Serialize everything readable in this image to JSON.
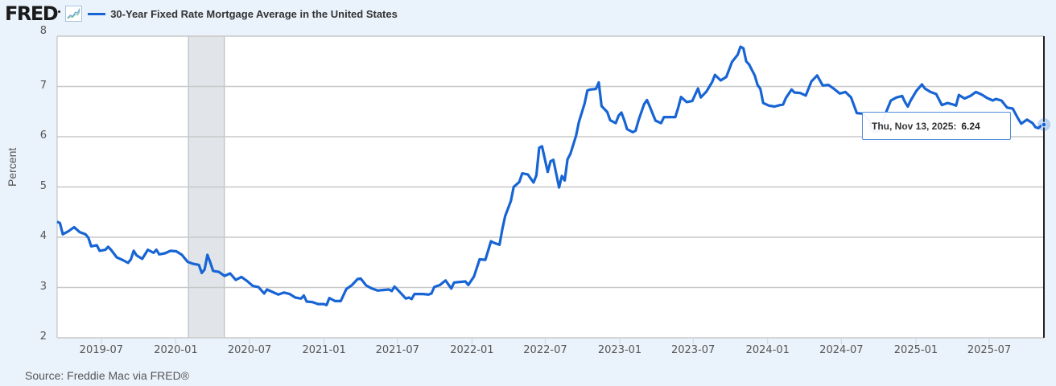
{
  "header": {
    "logo": "FRED",
    "icon": "line-chart-icon",
    "series_title": "30-Year Fixed Rate Mortgage Average in the United States"
  },
  "axis": {
    "ylabel": "Percent",
    "yticks": [
      "8",
      "7",
      "6",
      "5",
      "4",
      "3",
      "2"
    ],
    "xticks": [
      "2019-07",
      "2020-01",
      "2020-07",
      "2021-01",
      "2021-07",
      "2022-01",
      "2022-07",
      "2023-01",
      "2023-07",
      "2024-01",
      "2024-07",
      "2025-01",
      "2025-07"
    ]
  },
  "tooltip": {
    "date": "Thu, Nov 13, 2025:",
    "value": "6.24"
  },
  "source": "Source: Freddie Mac via FRED®",
  "colors": {
    "line": "#1764d4",
    "recession": "#e1e5ea",
    "grid": "#c8c8c8",
    "background": "#eaf2fb"
  },
  "chart_data": {
    "type": "line",
    "title": "30-Year Fixed Rate Mortgage Average in the United States",
    "xlabel": "",
    "ylabel": "Percent",
    "ylim": [
      2,
      8
    ],
    "xlim": [
      "2019-03-14",
      "2025-11-13"
    ],
    "grid": true,
    "legend_position": "top",
    "recession_shading": [
      [
        "2020-02-01",
        "2020-04-30"
      ]
    ],
    "series": [
      {
        "name": "30-Year Fixed Rate Mortgage Average in the United States",
        "points": [
          [
            "2019-03-14",
            4.31
          ],
          [
            "2019-03-21",
            4.28
          ],
          [
            "2019-03-28",
            4.06
          ],
          [
            "2019-04-11",
            4.12
          ],
          [
            "2019-04-25",
            4.2
          ],
          [
            "2019-05-09",
            4.1
          ],
          [
            "2019-05-23",
            4.06
          ],
          [
            "2019-05-30",
            3.99
          ],
          [
            "2019-06-06",
            3.82
          ],
          [
            "2019-06-20",
            3.84
          ],
          [
            "2019-06-27",
            3.73
          ],
          [
            "2019-07-11",
            3.75
          ],
          [
            "2019-07-18",
            3.81
          ],
          [
            "2019-07-25",
            3.75
          ],
          [
            "2019-08-08",
            3.6
          ],
          [
            "2019-08-22",
            3.55
          ],
          [
            "2019-09-05",
            3.49
          ],
          [
            "2019-09-12",
            3.56
          ],
          [
            "2019-09-19",
            3.73
          ],
          [
            "2019-09-26",
            3.64
          ],
          [
            "2019-10-10",
            3.57
          ],
          [
            "2019-10-24",
            3.75
          ],
          [
            "2019-11-07",
            3.69
          ],
          [
            "2019-11-14",
            3.75
          ],
          [
            "2019-11-21",
            3.66
          ],
          [
            "2019-12-05",
            3.68
          ],
          [
            "2019-12-19",
            3.73
          ],
          [
            "2020-01-02",
            3.72
          ],
          [
            "2020-01-16",
            3.65
          ],
          [
            "2020-01-30",
            3.51
          ],
          [
            "2020-02-13",
            3.47
          ],
          [
            "2020-02-27",
            3.45
          ],
          [
            "2020-03-05",
            3.29
          ],
          [
            "2020-03-12",
            3.36
          ],
          [
            "2020-03-19",
            3.65
          ],
          [
            "2020-03-26",
            3.5
          ],
          [
            "2020-04-02",
            3.33
          ],
          [
            "2020-04-16",
            3.31
          ],
          [
            "2020-04-30",
            3.23
          ],
          [
            "2020-05-14",
            3.28
          ],
          [
            "2020-05-28",
            3.15
          ],
          [
            "2020-06-11",
            3.21
          ],
          [
            "2020-06-25",
            3.13
          ],
          [
            "2020-07-09",
            3.03
          ],
          [
            "2020-07-23",
            3.01
          ],
          [
            "2020-08-06",
            2.88
          ],
          [
            "2020-08-13",
            2.96
          ],
          [
            "2020-08-27",
            2.91
          ],
          [
            "2020-09-10",
            2.86
          ],
          [
            "2020-09-24",
            2.9
          ],
          [
            "2020-10-08",
            2.87
          ],
          [
            "2020-10-22",
            2.8
          ],
          [
            "2020-11-05",
            2.78
          ],
          [
            "2020-11-12",
            2.84
          ],
          [
            "2020-11-19",
            2.72
          ],
          [
            "2020-12-03",
            2.71
          ],
          [
            "2020-12-17",
            2.67
          ],
          [
            "2020-12-31",
            2.67
          ],
          [
            "2021-01-07",
            2.65
          ],
          [
            "2021-01-14",
            2.79
          ],
          [
            "2021-01-28",
            2.73
          ],
          [
            "2021-02-11",
            2.73
          ],
          [
            "2021-02-25",
            2.97
          ],
          [
            "2021-03-11",
            3.05
          ],
          [
            "2021-03-25",
            3.17
          ],
          [
            "2021-04-01",
            3.18
          ],
          [
            "2021-04-15",
            3.04
          ],
          [
            "2021-04-29",
            2.98
          ],
          [
            "2021-05-13",
            2.94
          ],
          [
            "2021-05-27",
            2.95
          ],
          [
            "2021-06-10",
            2.96
          ],
          [
            "2021-06-17",
            2.93
          ],
          [
            "2021-06-24",
            3.02
          ],
          [
            "2021-07-08",
            2.9
          ],
          [
            "2021-07-22",
            2.78
          ],
          [
            "2021-07-29",
            2.8
          ],
          [
            "2021-08-05",
            2.77
          ],
          [
            "2021-08-12",
            2.87
          ],
          [
            "2021-09-02",
            2.87
          ],
          [
            "2021-09-16",
            2.86
          ],
          [
            "2021-09-23",
            2.88
          ],
          [
            "2021-09-30",
            3.01
          ],
          [
            "2021-10-14",
            3.05
          ],
          [
            "2021-10-28",
            3.14
          ],
          [
            "2021-11-11",
            2.98
          ],
          [
            "2021-11-18",
            3.1
          ],
          [
            "2021-12-02",
            3.11
          ],
          [
            "2021-12-16",
            3.12
          ],
          [
            "2021-12-23",
            3.05
          ],
          [
            "2022-01-06",
            3.22
          ],
          [
            "2022-01-20",
            3.56
          ],
          [
            "2022-02-03",
            3.55
          ],
          [
            "2022-02-17",
            3.92
          ],
          [
            "2022-02-24",
            3.89
          ],
          [
            "2022-03-10",
            3.85
          ],
          [
            "2022-03-17",
            4.16
          ],
          [
            "2022-03-24",
            4.42
          ],
          [
            "2022-04-07",
            4.72
          ],
          [
            "2022-04-14",
            5.0
          ],
          [
            "2022-04-28",
            5.1
          ],
          [
            "2022-05-05",
            5.27
          ],
          [
            "2022-05-19",
            5.25
          ],
          [
            "2022-06-02",
            5.09
          ],
          [
            "2022-06-09",
            5.23
          ],
          [
            "2022-06-16",
            5.78
          ],
          [
            "2022-06-23",
            5.81
          ],
          [
            "2022-07-07",
            5.3
          ],
          [
            "2022-07-14",
            5.51
          ],
          [
            "2022-07-21",
            5.54
          ],
          [
            "2022-08-04",
            4.99
          ],
          [
            "2022-08-11",
            5.22
          ],
          [
            "2022-08-18",
            5.13
          ],
          [
            "2022-08-25",
            5.55
          ],
          [
            "2022-09-01",
            5.66
          ],
          [
            "2022-09-15",
            6.02
          ],
          [
            "2022-09-22",
            6.29
          ],
          [
            "2022-10-06",
            6.66
          ],
          [
            "2022-10-13",
            6.92
          ],
          [
            "2022-10-20",
            6.94
          ],
          [
            "2022-11-03",
            6.95
          ],
          [
            "2022-11-10",
            7.08
          ],
          [
            "2022-11-17",
            6.61
          ],
          [
            "2022-12-01",
            6.49
          ],
          [
            "2022-12-08",
            6.33
          ],
          [
            "2022-12-22",
            6.27
          ],
          [
            "2022-12-29",
            6.42
          ],
          [
            "2023-01-05",
            6.48
          ],
          [
            "2023-01-12",
            6.33
          ],
          [
            "2023-01-19",
            6.15
          ],
          [
            "2023-02-02",
            6.09
          ],
          [
            "2023-02-09",
            6.12
          ],
          [
            "2023-02-16",
            6.32
          ],
          [
            "2023-03-02",
            6.65
          ],
          [
            "2023-03-09",
            6.73
          ],
          [
            "2023-03-16",
            6.6
          ],
          [
            "2023-03-30",
            6.32
          ],
          [
            "2023-04-13",
            6.27
          ],
          [
            "2023-04-20",
            6.39
          ],
          [
            "2023-05-04",
            6.39
          ],
          [
            "2023-05-18",
            6.39
          ],
          [
            "2023-05-25",
            6.57
          ],
          [
            "2023-06-01",
            6.79
          ],
          [
            "2023-06-15",
            6.69
          ],
          [
            "2023-06-29",
            6.71
          ],
          [
            "2023-07-13",
            6.96
          ],
          [
            "2023-07-20",
            6.78
          ],
          [
            "2023-08-03",
            6.9
          ],
          [
            "2023-08-17",
            7.09
          ],
          [
            "2023-08-24",
            7.23
          ],
          [
            "2023-09-07",
            7.12
          ],
          [
            "2023-09-21",
            7.19
          ],
          [
            "2023-10-05",
            7.49
          ],
          [
            "2023-10-19",
            7.63
          ],
          [
            "2023-10-26",
            7.79
          ],
          [
            "2023-11-02",
            7.76
          ],
          [
            "2023-11-09",
            7.5
          ],
          [
            "2023-11-16",
            7.44
          ],
          [
            "2023-11-30",
            7.22
          ],
          [
            "2023-12-07",
            7.03
          ],
          [
            "2023-12-14",
            6.95
          ],
          [
            "2023-12-21",
            6.67
          ],
          [
            "2024-01-04",
            6.62
          ],
          [
            "2024-01-18",
            6.6
          ],
          [
            "2024-02-01",
            6.63
          ],
          [
            "2024-02-08",
            6.64
          ],
          [
            "2024-02-15",
            6.77
          ],
          [
            "2024-02-29",
            6.94
          ],
          [
            "2024-03-07",
            6.88
          ],
          [
            "2024-03-21",
            6.87
          ],
          [
            "2024-04-04",
            6.82
          ],
          [
            "2024-04-18",
            7.1
          ],
          [
            "2024-05-02",
            7.22
          ],
          [
            "2024-05-16",
            7.02
          ],
          [
            "2024-05-30",
            7.03
          ],
          [
            "2024-06-13",
            6.95
          ],
          [
            "2024-06-27",
            6.86
          ],
          [
            "2024-07-11",
            6.89
          ],
          [
            "2024-07-25",
            6.78
          ],
          [
            "2024-08-08",
            6.47
          ],
          [
            "2024-08-22",
            6.46
          ],
          [
            "2024-09-05",
            6.35
          ],
          [
            "2024-09-19",
            6.09
          ],
          [
            "2024-10-03",
            6.12
          ],
          [
            "2024-10-17",
            6.44
          ],
          [
            "2024-10-31",
            6.72
          ],
          [
            "2024-11-14",
            6.78
          ],
          [
            "2024-11-28",
            6.81
          ],
          [
            "2024-12-05",
            6.69
          ],
          [
            "2024-12-12",
            6.6
          ],
          [
            "2024-12-19",
            6.72
          ],
          [
            "2025-01-02",
            6.91
          ],
          [
            "2025-01-16",
            7.04
          ],
          [
            "2025-01-23",
            6.96
          ],
          [
            "2025-02-06",
            6.89
          ],
          [
            "2025-02-20",
            6.85
          ],
          [
            "2025-03-06",
            6.63
          ],
          [
            "2025-03-20",
            6.67
          ],
          [
            "2025-04-03",
            6.64
          ],
          [
            "2025-04-10",
            6.62
          ],
          [
            "2025-04-17",
            6.83
          ],
          [
            "2025-05-01",
            6.76
          ],
          [
            "2025-05-15",
            6.81
          ],
          [
            "2025-05-29",
            6.89
          ],
          [
            "2025-06-12",
            6.84
          ],
          [
            "2025-06-26",
            6.77
          ],
          [
            "2025-07-10",
            6.72
          ],
          [
            "2025-07-17",
            6.75
          ],
          [
            "2025-07-31",
            6.72
          ],
          [
            "2025-08-14",
            6.58
          ],
          [
            "2025-08-28",
            6.56
          ],
          [
            "2025-09-11",
            6.35
          ],
          [
            "2025-09-18",
            6.26
          ],
          [
            "2025-10-02",
            6.34
          ],
          [
            "2025-10-16",
            6.27
          ],
          [
            "2025-10-23",
            6.19
          ],
          [
            "2025-10-30",
            6.17
          ],
          [
            "2025-11-06",
            6.22
          ],
          [
            "2025-11-13",
            6.24
          ]
        ]
      }
    ],
    "hover_point": {
      "date": "2025-11-13",
      "value": 6.24
    }
  }
}
